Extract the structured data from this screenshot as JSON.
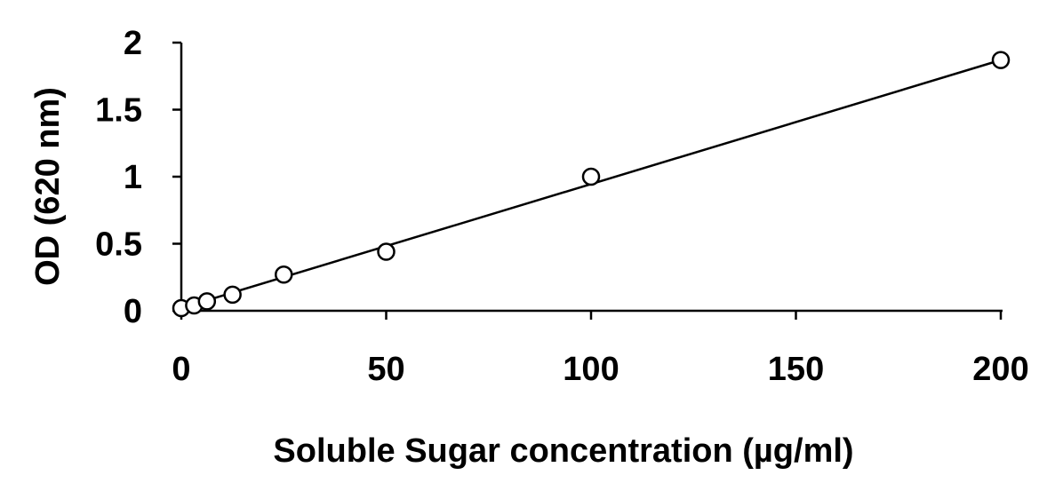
{
  "chart_data": {
    "type": "scatter",
    "xlabel": "Soluble Sugar concentration (µg/ml)",
    "ylabel": "OD (620 nm)",
    "xlim": [
      0,
      200
    ],
    "ylim": [
      0,
      2
    ],
    "x_ticks": [
      0,
      50,
      100,
      150,
      200
    ],
    "y_ticks": [
      0,
      0.5,
      1,
      1.5,
      2
    ],
    "x_tick_labels": [
      "0",
      "50",
      "100",
      "150",
      "200"
    ],
    "y_tick_labels": [
      "0",
      "0.5",
      "1",
      "1.5",
      "2"
    ],
    "grid": false,
    "legend": "none",
    "series": [
      {
        "x": [
          0,
          3.125,
          6.25,
          12.5,
          25,
          50,
          100,
          200
        ],
        "y": [
          0.02,
          0.04,
          0.07,
          0.12,
          0.27,
          0.44,
          1.0,
          1.87
        ]
      }
    ],
    "trendline": {
      "type": "linear",
      "x": [
        0,
        200
      ],
      "y": [
        0.02,
        1.87
      ]
    }
  }
}
